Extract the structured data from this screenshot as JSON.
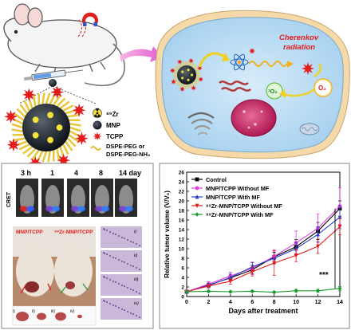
{
  "legend_top": [
    {
      "key": "zr",
      "label": "⁸⁹Zr"
    },
    {
      "key": "mnp",
      "label": "MNP"
    },
    {
      "key": "tcpp",
      "label": "TCPP"
    },
    {
      "key": "peg",
      "label": "DSPE-PEG or"
    },
    {
      "key": "peg2",
      "label": "DSPE-PEG-NH₂"
    }
  ],
  "cell": {
    "cherenkov_line1": "Cherenkov",
    "cherenkov_line2": "radiation",
    "singlet_oxygen": "¹O₂",
    "oxygen": "O₂"
  },
  "imaging": {
    "row_label": "CRET",
    "time_labels": [
      "3 h",
      "1",
      "4",
      "8",
      "14 day"
    ],
    "mouse_labels": [
      "MNP/TCPP",
      "⁸⁹Zr-MNP/TCPP"
    ],
    "histo_labels": [
      "i)",
      "ii)",
      "iii)",
      "iv)"
    ],
    "tumor_labels": [
      "i)",
      "ii)",
      "iii)",
      "iv)"
    ]
  },
  "colors": {
    "control": "#000000",
    "mnp_without": "#e040e0",
    "mnp_with": "#2d3fd0",
    "zr_without": "#e41b1b",
    "zr_with": "#1a9a2a"
  },
  "chart_data": {
    "type": "line",
    "xlabel": "Days after treatment",
    "ylabel": "Relative tumor volume (V/V₀)",
    "xlim": [
      0,
      14
    ],
    "ylim": [
      0,
      26
    ],
    "x": [
      0,
      2,
      4,
      6,
      8,
      10,
      12,
      14
    ],
    "xticks": [
      0,
      2,
      4,
      6,
      8,
      10,
      12,
      14
    ],
    "yticks": [
      0,
      2,
      4,
      6,
      8,
      10,
      12,
      14,
      16,
      18,
      20,
      22,
      24,
      26
    ],
    "legend_position": "top-left",
    "significance": "***",
    "series": [
      {
        "name": "Control",
        "color": "#000000",
        "marker": "square",
        "values": [
          1,
          2.4,
          3.9,
          5.6,
          8.3,
          10.4,
          13.7,
          18.4
        ],
        "err": [
          0,
          0.4,
          0.6,
          0.9,
          1.0,
          1.5,
          1.8,
          1.6
        ]
      },
      {
        "name": "MNP/TCPP Without MF",
        "color": "#e040e0",
        "marker": "circle",
        "values": [
          1,
          2.6,
          4.3,
          5.9,
          8.4,
          11.2,
          14.3,
          18.9
        ],
        "err": [
          0,
          0.5,
          0.8,
          1.3,
          1.4,
          2.5,
          3.0,
          3.8
        ]
      },
      {
        "name": "MNP/TCPP With MF",
        "color": "#2d3fd0",
        "marker": "triangle-up",
        "values": [
          1,
          2.3,
          4.0,
          6.2,
          8.0,
          10.0,
          13.0,
          16.6
        ],
        "err": [
          0,
          0.5,
          0.7,
          0.9,
          1.2,
          1.3,
          1.6,
          2.4
        ]
      },
      {
        "name": "⁸⁹Zr-MNP/TCPP Without MF",
        "color": "#e41b1b",
        "marker": "triangle-down",
        "values": [
          1,
          2.2,
          3.2,
          5.2,
          7.0,
          8.6,
          10.5,
          14.6
        ],
        "err": [
          0,
          0.4,
          0.6,
          0.9,
          2.6,
          1.3,
          1.5,
          1.7
        ]
      },
      {
        "name": "⁸⁹Zr-MNP/TCPP With MF",
        "color": "#1a9a2a",
        "marker": "diamond",
        "values": [
          1,
          1.1,
          1.0,
          1.1,
          0.9,
          1.2,
          1.2,
          1.7
        ],
        "err": [
          0,
          0.2,
          0.2,
          0.2,
          0.2,
          0.3,
          0.3,
          0.4
        ]
      }
    ]
  }
}
